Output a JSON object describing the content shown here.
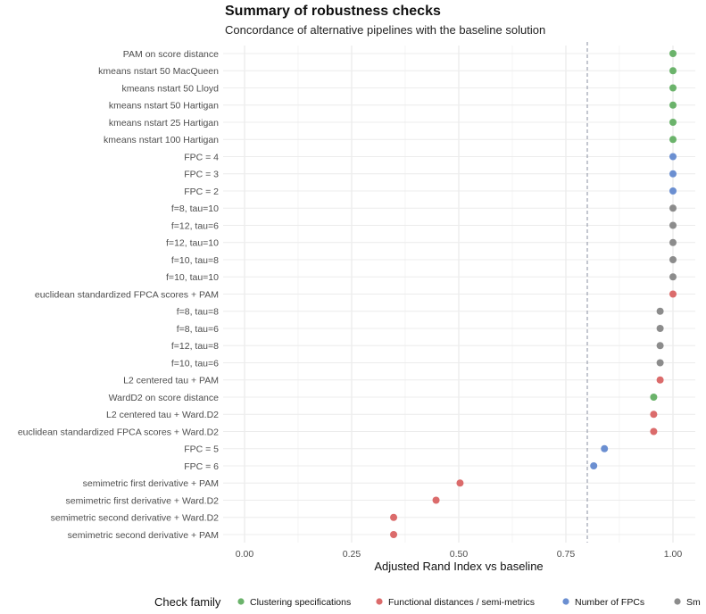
{
  "chart_data": {
    "type": "scatter",
    "title": "Summary of robustness checks",
    "subtitle": "Concordance of alternative pipelines with the baseline solution",
    "xlabel": "Adjusted Rand Index vs baseline",
    "ylabel": "",
    "xlim": [
      0.0,
      1.0
    ],
    "xticks": [
      0.0,
      0.25,
      0.5,
      0.75,
      1.0
    ],
    "xtick_labels": [
      "0.00",
      "0.25",
      "0.50",
      "0.75",
      "1.00"
    ],
    "reference_line": 0.8,
    "grid": true,
    "legend_title": "Check family",
    "legend_position": "bottom",
    "series": [
      {
        "name": "Clustering specifications",
        "color": "#6BB36B"
      },
      {
        "name": "Functional distances / semi-metrics",
        "color": "#DB6B6B"
      },
      {
        "name": "Number of FPCs",
        "color": "#6B8FD1"
      },
      {
        "name": "Sm",
        "color": "#8C8C8C"
      }
    ],
    "points": [
      {
        "label": "PAM on score distance",
        "x": 1.0,
        "family": 0
      },
      {
        "label": "kmeans nstart 50 MacQueen",
        "x": 1.0,
        "family": 0
      },
      {
        "label": "kmeans nstart 50 Lloyd",
        "x": 1.0,
        "family": 0
      },
      {
        "label": "kmeans nstart 50 Hartigan",
        "x": 1.0,
        "family": 0
      },
      {
        "label": "kmeans nstart 25 Hartigan",
        "x": 1.0,
        "family": 0
      },
      {
        "label": "kmeans nstart 100 Hartigan",
        "x": 1.0,
        "family": 0
      },
      {
        "label": "FPC = 4",
        "x": 1.0,
        "family": 2
      },
      {
        "label": "FPC = 3",
        "x": 1.0,
        "family": 2
      },
      {
        "label": "FPC = 2",
        "x": 1.0,
        "family": 2
      },
      {
        "label": "f=8, tau=10",
        "x": 1.0,
        "family": 3
      },
      {
        "label": "f=12, tau=6",
        "x": 1.0,
        "family": 3
      },
      {
        "label": "f=12, tau=10",
        "x": 1.0,
        "family": 3
      },
      {
        "label": "f=10, tau=8",
        "x": 1.0,
        "family": 3
      },
      {
        "label": "f=10, tau=10",
        "x": 1.0,
        "family": 3
      },
      {
        "label": "euclidean standardized FPCA scores + PAM",
        "x": 1.0,
        "family": 1
      },
      {
        "label": "f=8, tau=8",
        "x": 0.97,
        "family": 3
      },
      {
        "label": "f=8, tau=6",
        "x": 0.97,
        "family": 3
      },
      {
        "label": "f=12, tau=8",
        "x": 0.97,
        "family": 3
      },
      {
        "label": "f=10, tau=6",
        "x": 0.97,
        "family": 3
      },
      {
        "label": "L2 centered tau + PAM",
        "x": 0.97,
        "family": 1
      },
      {
        "label": "WardD2 on score distance",
        "x": 0.955,
        "family": 0
      },
      {
        "label": "L2 centered tau + Ward.D2",
        "x": 0.955,
        "family": 1
      },
      {
        "label": "euclidean standardized FPCA scores + Ward.D2",
        "x": 0.955,
        "family": 1
      },
      {
        "label": "FPC = 5",
        "x": 0.84,
        "family": 2
      },
      {
        "label": "FPC = 6",
        "x": 0.815,
        "family": 2
      },
      {
        "label": "semimetric first derivative + PAM",
        "x": 0.503,
        "family": 1
      },
      {
        "label": "semimetric first derivative + Ward.D2",
        "x": 0.447,
        "family": 1
      },
      {
        "label": "semimetric second derivative + Ward.D2",
        "x": 0.348,
        "family": 1
      },
      {
        "label": "semimetric second derivative + PAM",
        "x": 0.348,
        "family": 1
      }
    ]
  }
}
